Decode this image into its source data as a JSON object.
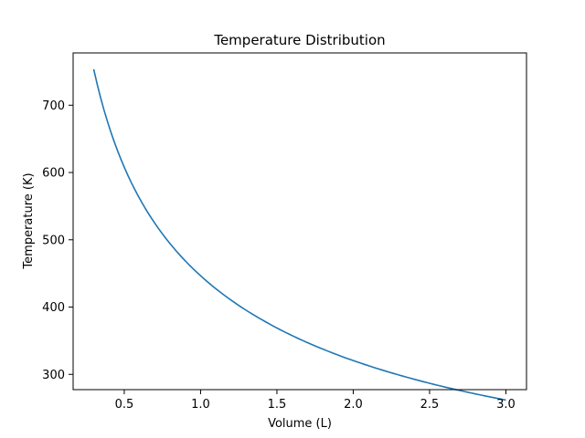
{
  "chart_data": {
    "type": "line",
    "title": "Temperature Distribution",
    "xlabel": "Volume (L)",
    "ylabel": "Temperature (K)",
    "xlim": [
      0.165,
      3.135
    ],
    "ylim": [
      277.3,
      777.7
    ],
    "x_ticks": [
      0.5,
      1.0,
      1.5,
      2.0,
      2.5,
      3.0
    ],
    "x_tick_labels": [
      "0.5",
      "1.0",
      "1.5",
      "2.0",
      "2.5",
      "3.0"
    ],
    "y_ticks": [
      300,
      400,
      500,
      600,
      700
    ],
    "y_tick_labels": [
      "300",
      "400",
      "500",
      "600",
      "700"
    ],
    "grid": false,
    "series": [
      {
        "color": "#1f77b4",
        "x": [
          0.3,
          0.35,
          0.4,
          0.45,
          0.5,
          0.6,
          0.7,
          0.8,
          0.9,
          1.0,
          1.2,
          1.4,
          1.6,
          1.8,
          2.0,
          2.2,
          2.4,
          2.6,
          2.8,
          3.0
        ],
        "y": [
          753.4,
          707.0,
          668.6,
          636.0,
          607.9,
          561.6,
          524.7,
          494.3,
          468.6,
          446.6,
          410.3,
          381.4,
          357.6,
          337.6,
          320.5,
          305.7,
          292.7,
          281.2,
          271.0,
          261.8
        ]
      }
    ]
  }
}
